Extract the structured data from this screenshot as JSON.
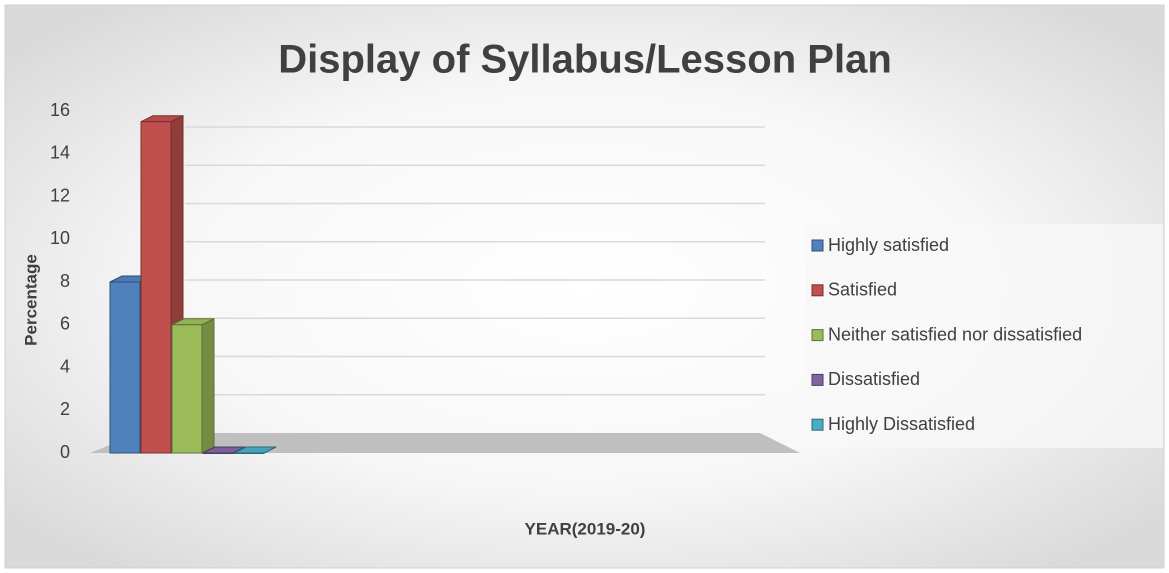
{
  "chart_data": {
    "type": "bar",
    "title": "Display of Syllabus/Lesson Plan",
    "x_label": "YEAR(2019-20)",
    "y_label": "Percentage",
    "categories": [
      null
    ],
    "series": [
      {
        "name": "Highly satisfied",
        "color": "#4f81bd",
        "values": [
          8
        ]
      },
      {
        "name": "Satisfied",
        "color": "#c0504d",
        "values": [
          15.5
        ]
      },
      {
        "name": "Neither satisfied nor dissatisfied",
        "color": "#9bbb59",
        "values": [
          6
        ]
      },
      {
        "name": "Dissatisfied",
        "color": "#8064a2",
        "values": [
          0
        ]
      },
      {
        "name": "Highly Dissatisfied",
        "color": "#4bacc6",
        "values": [
          0
        ]
      }
    ],
    "ylim": [
      0,
      16
    ],
    "yticks": [
      0,
      2,
      4,
      6,
      8,
      10,
      12,
      14,
      16
    ],
    "grid": true,
    "legend": "right"
  }
}
